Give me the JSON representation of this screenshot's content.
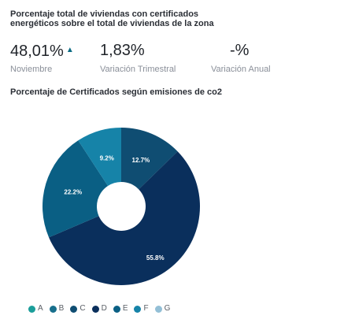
{
  "header": {
    "title": "Porcentaje total de viviendas con certificados energéticos sobre el total de viviendas de la zona"
  },
  "kpis": [
    {
      "value": "48,01%",
      "trend_icon": "up-arrow-icon",
      "label": "Noviembre"
    },
    {
      "value": "1,83%",
      "label": "Variación Trimestral"
    },
    {
      "value": "-%",
      "label": "Variación Anual"
    }
  ],
  "colors": {
    "accent": "#0b6b83"
  },
  "chart_data": {
    "type": "pie",
    "title": "Porcentaje de Certificados según emisiones de co2",
    "categories": [
      "A",
      "B",
      "C",
      "D",
      "E",
      "F",
      "G"
    ],
    "values": [
      0,
      0,
      12.7,
      55.8,
      22.2,
      9.2,
      0
    ],
    "data_labels": [
      "",
      "",
      "12.7%",
      "55.8%",
      "22.2%",
      "9.2%",
      ""
    ],
    "colors": [
      "#1b9e9a",
      "#176f8c",
      "#0f4d72",
      "#0a2f5c",
      "#0a5f84",
      "#1683a8",
      "#93bfd6"
    ],
    "legend_position": "bottom",
    "donut": true
  }
}
